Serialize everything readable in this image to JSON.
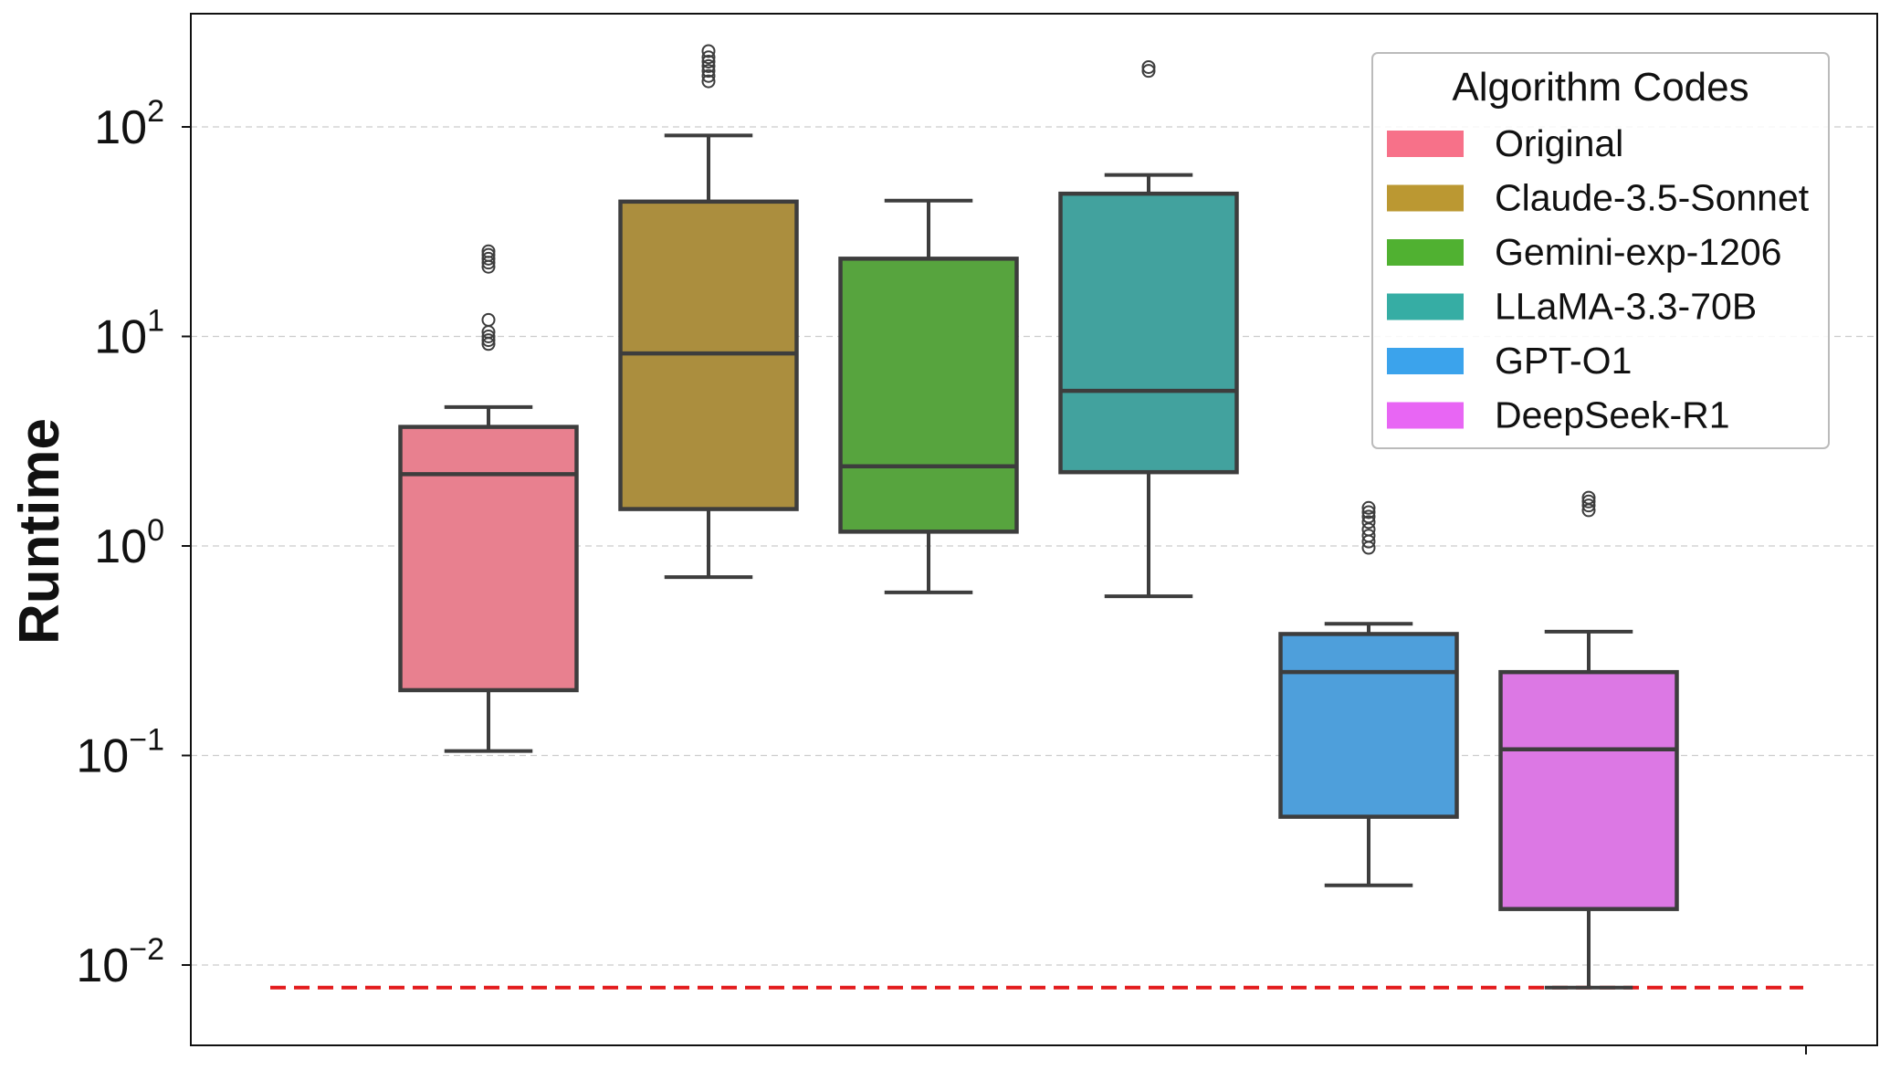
{
  "chart_data": {
    "type": "box",
    "title": "",
    "xlabel": "",
    "ylabel": "Runtime",
    "yscale": "log",
    "ylim": [
      0.004,
      350
    ],
    "y_ticks": [
      {
        "value": 0.01,
        "base": "10",
        "exp": "−2"
      },
      {
        "value": 0.1,
        "base": "10",
        "exp": "−1"
      },
      {
        "value": 1,
        "base": "10",
        "exp": "0"
      },
      {
        "value": 10,
        "base": "10",
        "exp": "1"
      },
      {
        "value": 100,
        "base": "10",
        "exp": "2"
      }
    ],
    "grid": "horizontal dashed",
    "legend": {
      "title": "Algorithm Codes",
      "placement": "top-right"
    },
    "series": [
      {
        "name": "Original",
        "color": "#e8808f",
        "legend_color": "#f77189",
        "whisker_low": 0.105,
        "q1": 0.205,
        "median": 2.2,
        "q3": 3.7,
        "whisker_high": 4.6,
        "outliers": [
          9.2,
          9.6,
          10.0,
          10.5,
          12.0,
          21.5,
          22.5,
          23.5,
          24.5,
          25.5
        ]
      },
      {
        "name": "Claude-3.5-Sonnet",
        "color": "#ab8e3e",
        "legend_color": "#bb9832",
        "whisker_low": 0.71,
        "q1": 1.5,
        "median": 8.3,
        "q3": 44,
        "whisker_high": 91,
        "outliers": [
          165,
          175,
          185,
          195,
          205,
          215,
          230
        ]
      },
      {
        "name": "Gemini-exp-1206",
        "color": "#57a43e",
        "legend_color": "#50b131",
        "whisker_low": 0.6,
        "q1": 1.17,
        "median": 2.4,
        "q3": 23.5,
        "whisker_high": 44.5,
        "outliers": []
      },
      {
        "name": "LLaMA-3.3-70B",
        "color": "#42a29e",
        "legend_color": "#36ada4",
        "whisker_low": 0.575,
        "q1": 2.25,
        "median": 5.5,
        "q3": 48,
        "whisker_high": 59,
        "outliers": [
          185,
          193
        ]
      },
      {
        "name": "GPT-O1",
        "color": "#4e9fdb",
        "legend_color": "#3ba3ec",
        "whisker_low": 0.024,
        "q1": 0.051,
        "median": 0.25,
        "q3": 0.38,
        "whisker_high": 0.425,
        "outliers": [
          0.98,
          1.05,
          1.12,
          1.2,
          1.3,
          1.38,
          1.45,
          1.52
        ]
      },
      {
        "name": "DeepSeek-R1",
        "color": "#dc78e4",
        "legend_color": "#e866f4",
        "whisker_low": 0.0078,
        "q1": 0.0185,
        "median": 0.107,
        "q3": 0.25,
        "whisker_high": 0.39,
        "outliers": [
          1.48,
          1.56,
          1.63,
          1.7
        ]
      }
    ],
    "reference_line": {
      "value": 0.0078,
      "color": "#e31a1c",
      "style": "dashed"
    },
    "colors": {
      "box_edge": "#3d3d3d",
      "grid": "#cccccc",
      "axis": "#111111"
    }
  }
}
